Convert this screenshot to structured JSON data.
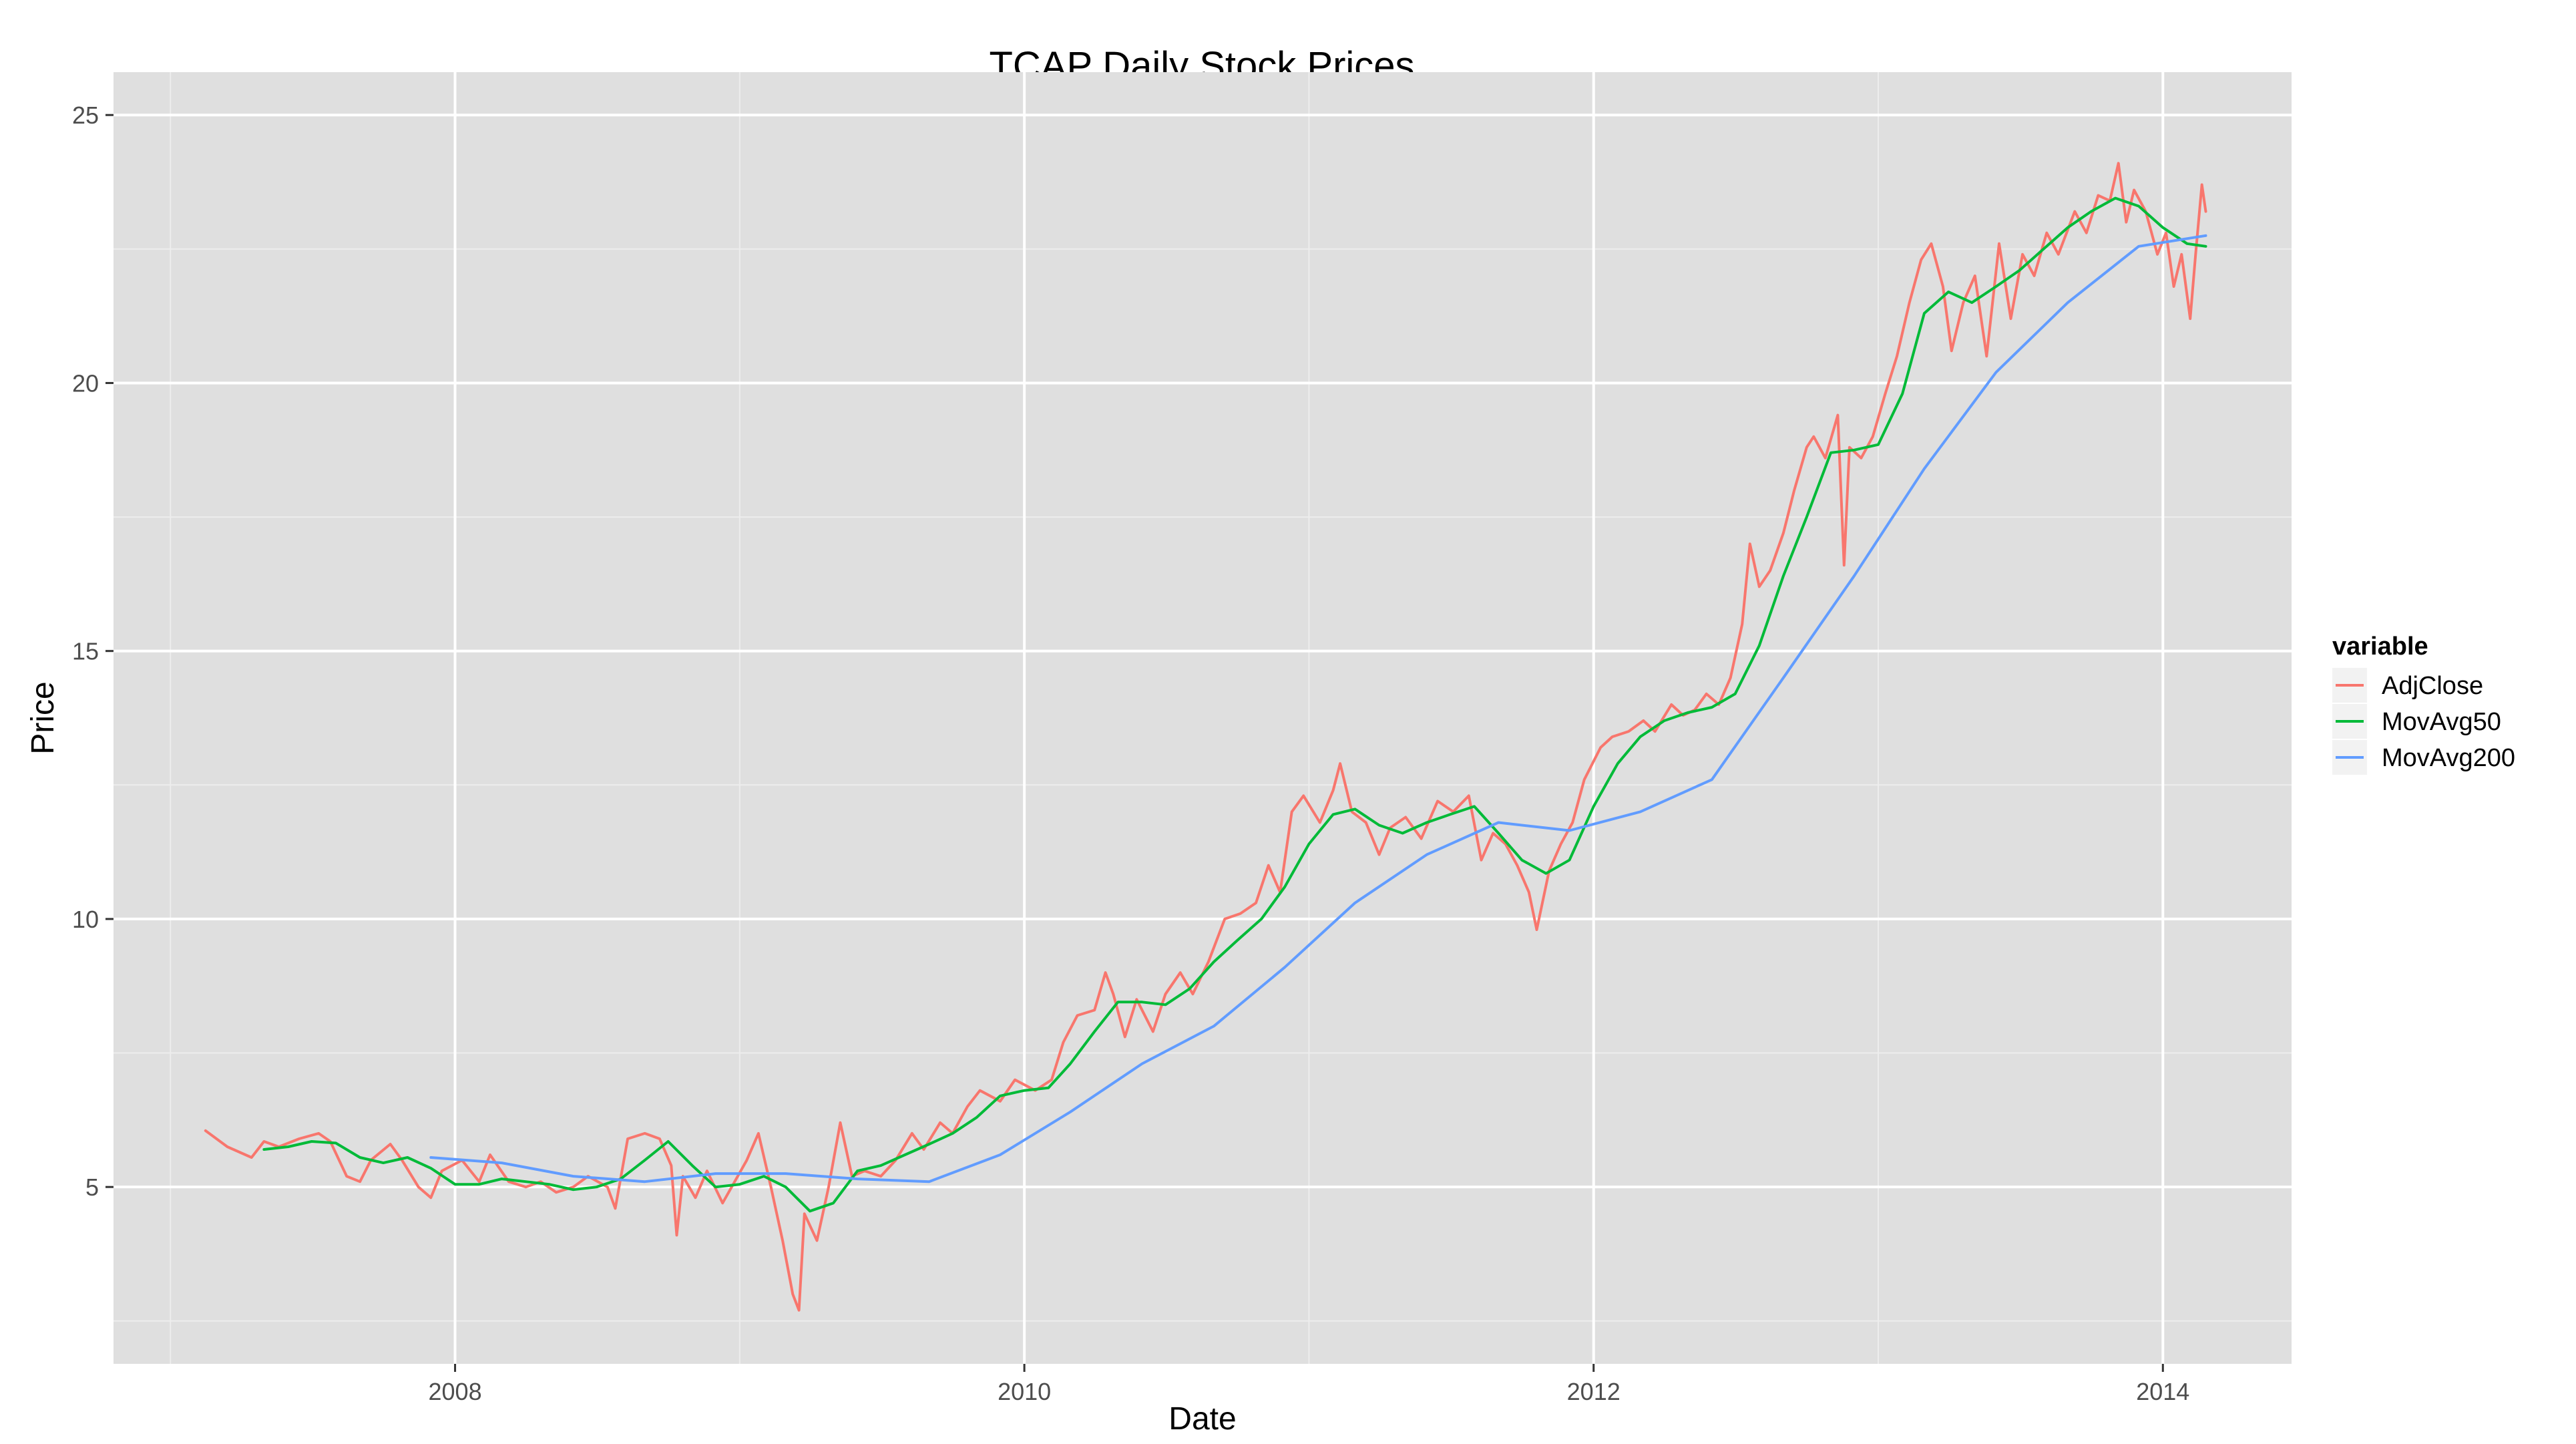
{
  "chart_data": {
    "type": "line",
    "title": "TCAP Daily Stock Prices",
    "xlabel": "Date",
    "ylabel": "Price",
    "x_ticks": [
      "2008",
      "2010",
      "2012",
      "2014"
    ],
    "y_ticks": [
      "5",
      "10",
      "15",
      "20",
      "25"
    ],
    "xlim": [
      "2006-10-20",
      "2014-06-15"
    ],
    "ylim": [
      1.7,
      25.8
    ],
    "grid": true,
    "background": "#dfdfdf",
    "legend": {
      "title": "variable",
      "placement": "right"
    },
    "series": [
      {
        "name": "AdjClose",
        "color": "#f8766d",
        "points": [
          [
            "2007-02-15",
            6.05
          ],
          [
            "2007-03-15",
            5.75
          ],
          [
            "2007-04-15",
            5.55
          ],
          [
            "2007-05-01",
            5.85
          ],
          [
            "2007-05-20",
            5.75
          ],
          [
            "2007-06-15",
            5.9
          ],
          [
            "2007-07-10",
            6.0
          ],
          [
            "2007-07-25",
            5.85
          ],
          [
            "2007-08-15",
            5.2
          ],
          [
            "2007-09-01",
            5.1
          ],
          [
            "2007-09-15",
            5.5
          ],
          [
            "2007-10-10",
            5.8
          ],
          [
            "2007-10-25",
            5.5
          ],
          [
            "2007-11-15",
            5.0
          ],
          [
            "2007-12-01",
            4.8
          ],
          [
            "2007-12-15",
            5.3
          ],
          [
            "2008-01-10",
            5.5
          ],
          [
            "2008-02-01",
            5.1
          ],
          [
            "2008-02-15",
            5.6
          ],
          [
            "2008-03-10",
            5.1
          ],
          [
            "2008-04-01",
            5.0
          ],
          [
            "2008-04-20",
            5.1
          ],
          [
            "2008-05-10",
            4.9
          ],
          [
            "2008-06-01",
            5.0
          ],
          [
            "2008-06-20",
            5.2
          ],
          [
            "2008-07-15",
            5.0
          ],
          [
            "2008-07-25",
            4.6
          ],
          [
            "2008-08-10",
            5.9
          ],
          [
            "2008-09-01",
            6.0
          ],
          [
            "2008-09-20",
            5.9
          ],
          [
            "2008-10-05",
            5.4
          ],
          [
            "2008-10-12",
            4.1
          ],
          [
            "2008-10-20",
            5.2
          ],
          [
            "2008-11-05",
            4.8
          ],
          [
            "2008-11-20",
            5.3
          ],
          [
            "2008-12-10",
            4.7
          ],
          [
            "2009-01-10",
            5.5
          ],
          [
            "2009-01-25",
            6.0
          ],
          [
            "2009-02-10",
            5.0
          ],
          [
            "2009-02-25",
            4.0
          ],
          [
            "2009-03-10",
            3.0
          ],
          [
            "2009-03-18",
            2.7
          ],
          [
            "2009-03-25",
            4.5
          ],
          [
            "2009-04-10",
            4.0
          ],
          [
            "2009-04-25",
            5.0
          ],
          [
            "2009-05-10",
            6.2
          ],
          [
            "2009-05-25",
            5.2
          ],
          [
            "2009-06-10",
            5.3
          ],
          [
            "2009-07-01",
            5.2
          ],
          [
            "2009-07-20",
            5.5
          ],
          [
            "2009-08-10",
            6.0
          ],
          [
            "2009-08-25",
            5.7
          ],
          [
            "2009-09-15",
            6.2
          ],
          [
            "2009-10-01",
            6.0
          ],
          [
            "2009-10-20",
            6.5
          ],
          [
            "2009-11-05",
            6.8
          ],
          [
            "2009-12-01",
            6.6
          ],
          [
            "2009-12-20",
            7.0
          ],
          [
            "2010-01-15",
            6.8
          ],
          [
            "2010-02-05",
            7.0
          ],
          [
            "2010-02-20",
            7.7
          ],
          [
            "2010-03-10",
            8.2
          ],
          [
            "2010-04-01",
            8.3
          ],
          [
            "2010-04-15",
            9.0
          ],
          [
            "2010-04-25",
            8.6
          ],
          [
            "2010-05-10",
            7.8
          ],
          [
            "2010-05-25",
            8.5
          ],
          [
            "2010-06-15",
            7.9
          ],
          [
            "2010-07-01",
            8.6
          ],
          [
            "2010-07-20",
            9.0
          ],
          [
            "2010-08-05",
            8.6
          ],
          [
            "2010-08-25",
            9.2
          ],
          [
            "2010-09-15",
            10.0
          ],
          [
            "2010-10-05",
            10.1
          ],
          [
            "2010-10-25",
            10.3
          ],
          [
            "2010-11-10",
            11.0
          ],
          [
            "2010-11-25",
            10.5
          ],
          [
            "2010-12-10",
            12.0
          ],
          [
            "2010-12-25",
            12.3
          ],
          [
            "2011-01-15",
            11.8
          ],
          [
            "2011-02-01",
            12.4
          ],
          [
            "2011-02-10",
            12.9
          ],
          [
            "2011-02-25",
            12.0
          ],
          [
            "2011-03-15",
            11.8
          ],
          [
            "2011-04-01",
            11.2
          ],
          [
            "2011-04-15",
            11.7
          ],
          [
            "2011-05-05",
            11.9
          ],
          [
            "2011-05-25",
            11.5
          ],
          [
            "2011-06-15",
            12.2
          ],
          [
            "2011-07-05",
            12.0
          ],
          [
            "2011-07-25",
            12.3
          ],
          [
            "2011-08-10",
            11.1
          ],
          [
            "2011-08-25",
            11.6
          ],
          [
            "2011-09-10",
            11.4
          ],
          [
            "2011-09-25",
            11.0
          ],
          [
            "2011-10-10",
            10.5
          ],
          [
            "2011-10-20",
            9.8
          ],
          [
            "2011-11-05",
            10.9
          ],
          [
            "2011-11-20",
            11.4
          ],
          [
            "2011-12-05",
            11.8
          ],
          [
            "2011-12-20",
            12.6
          ],
          [
            "2012-01-10",
            13.2
          ],
          [
            "2012-01-25",
            13.4
          ],
          [
            "2012-02-15",
            13.5
          ],
          [
            "2012-03-05",
            13.7
          ],
          [
            "2012-03-20",
            13.5
          ],
          [
            "2012-04-10",
            14.0
          ],
          [
            "2012-04-25",
            13.8
          ],
          [
            "2012-05-10",
            13.9
          ],
          [
            "2012-05-25",
            14.2
          ],
          [
            "2012-06-10",
            14.0
          ],
          [
            "2012-06-25",
            14.5
          ],
          [
            "2012-07-10",
            15.5
          ],
          [
            "2012-07-20",
            17.0
          ],
          [
            "2012-08-01",
            16.2
          ],
          [
            "2012-08-15",
            16.5
          ],
          [
            "2012-09-01",
            17.2
          ],
          [
            "2012-09-15",
            18.0
          ],
          [
            "2012-10-01",
            18.8
          ],
          [
            "2012-10-10",
            19.0
          ],
          [
            "2012-10-25",
            18.6
          ],
          [
            "2012-11-10",
            19.4
          ],
          [
            "2012-11-18",
            16.6
          ],
          [
            "2012-11-25",
            18.8
          ],
          [
            "2012-12-10",
            18.6
          ],
          [
            "2012-12-25",
            19.0
          ],
          [
            "2013-01-10",
            19.8
          ],
          [
            "2013-01-25",
            20.5
          ],
          [
            "2013-02-10",
            21.5
          ],
          [
            "2013-02-25",
            22.3
          ],
          [
            "2013-03-10",
            22.6
          ],
          [
            "2013-03-25",
            21.8
          ],
          [
            "2013-04-05",
            20.6
          ],
          [
            "2013-04-20",
            21.5
          ],
          [
            "2013-05-05",
            22.0
          ],
          [
            "2013-05-20",
            20.5
          ],
          [
            "2013-06-05",
            22.6
          ],
          [
            "2013-06-20",
            21.2
          ],
          [
            "2013-07-05",
            22.4
          ],
          [
            "2013-07-20",
            22.0
          ],
          [
            "2013-08-05",
            22.8
          ],
          [
            "2013-08-20",
            22.4
          ],
          [
            "2013-09-10",
            23.2
          ],
          [
            "2013-09-25",
            22.8
          ],
          [
            "2013-10-10",
            23.5
          ],
          [
            "2013-10-25",
            23.4
          ],
          [
            "2013-11-05",
            24.1
          ],
          [
            "2013-11-15",
            23.0
          ],
          [
            "2013-11-25",
            23.6
          ],
          [
            "2013-12-10",
            23.2
          ],
          [
            "2013-12-25",
            22.4
          ],
          [
            "2014-01-05",
            22.8
          ],
          [
            "2014-01-15",
            21.8
          ],
          [
            "2014-01-25",
            22.4
          ],
          [
            "2014-02-05",
            21.2
          ],
          [
            "2014-02-12",
            22.4
          ],
          [
            "2014-02-20",
            23.7
          ],
          [
            "2014-02-25",
            23.2
          ]
        ]
      },
      {
        "name": "MovAvg50",
        "color": "#00ba38",
        "points": [
          [
            "2007-05-01",
            5.7
          ],
          [
            "2007-06-01",
            5.75
          ],
          [
            "2007-07-01",
            5.85
          ],
          [
            "2007-08-01",
            5.82
          ],
          [
            "2007-09-01",
            5.55
          ],
          [
            "2007-10-01",
            5.45
          ],
          [
            "2007-11-01",
            5.55
          ],
          [
            "2007-12-01",
            5.35
          ],
          [
            "2008-01-01",
            5.05
          ],
          [
            "2008-02-01",
            5.05
          ],
          [
            "2008-03-01",
            5.15
          ],
          [
            "2008-04-01",
            5.1
          ],
          [
            "2008-05-01",
            5.05
          ],
          [
            "2008-06-01",
            4.95
          ],
          [
            "2008-07-01",
            5.0
          ],
          [
            "2008-08-01",
            5.15
          ],
          [
            "2008-09-01",
            5.5
          ],
          [
            "2008-10-01",
            5.85
          ],
          [
            "2008-11-01",
            5.4
          ],
          [
            "2008-12-01",
            5.0
          ],
          [
            "2009-01-01",
            5.05
          ],
          [
            "2009-02-01",
            5.2
          ],
          [
            "2009-03-01",
            5.0
          ],
          [
            "2009-04-01",
            4.55
          ],
          [
            "2009-05-01",
            4.7
          ],
          [
            "2009-06-01",
            5.3
          ],
          [
            "2009-07-01",
            5.4
          ],
          [
            "2009-08-01",
            5.6
          ],
          [
            "2009-09-01",
            5.8
          ],
          [
            "2009-10-01",
            6.0
          ],
          [
            "2009-11-01",
            6.3
          ],
          [
            "2009-12-01",
            6.7
          ],
          [
            "2010-01-01",
            6.8
          ],
          [
            "2010-02-01",
            6.85
          ],
          [
            "2010-03-01",
            7.3
          ],
          [
            "2010-04-01",
            7.9
          ],
          [
            "2010-05-01",
            8.45
          ],
          [
            "2010-06-01",
            8.45
          ],
          [
            "2010-07-01",
            8.4
          ],
          [
            "2010-08-01",
            8.7
          ],
          [
            "2010-09-01",
            9.2
          ],
          [
            "2010-10-01",
            9.6
          ],
          [
            "2010-11-01",
            10.0
          ],
          [
            "2010-12-01",
            10.6
          ],
          [
            "2011-01-01",
            11.4
          ],
          [
            "2011-02-01",
            11.95
          ],
          [
            "2011-03-01",
            12.05
          ],
          [
            "2011-04-01",
            11.75
          ],
          [
            "2011-05-01",
            11.6
          ],
          [
            "2011-06-01",
            11.8
          ],
          [
            "2011-07-01",
            11.95
          ],
          [
            "2011-08-01",
            12.1
          ],
          [
            "2011-09-01",
            11.6
          ],
          [
            "2011-10-01",
            11.1
          ],
          [
            "2011-11-01",
            10.85
          ],
          [
            "2011-12-01",
            11.1
          ],
          [
            "2012-01-01",
            12.1
          ],
          [
            "2012-02-01",
            12.9
          ],
          [
            "2012-03-01",
            13.4
          ],
          [
            "2012-04-01",
            13.7
          ],
          [
            "2012-05-01",
            13.85
          ],
          [
            "2012-06-01",
            13.95
          ],
          [
            "2012-07-01",
            14.2
          ],
          [
            "2012-08-01",
            15.1
          ],
          [
            "2012-09-01",
            16.4
          ],
          [
            "2012-10-01",
            17.5
          ],
          [
            "2012-11-01",
            18.7
          ],
          [
            "2012-12-01",
            18.75
          ],
          [
            "2013-01-01",
            18.85
          ],
          [
            "2013-02-01",
            19.8
          ],
          [
            "2013-03-01",
            21.3
          ],
          [
            "2013-04-01",
            21.7
          ],
          [
            "2013-05-01",
            21.5
          ],
          [
            "2013-06-01",
            21.8
          ],
          [
            "2013-07-01",
            22.1
          ],
          [
            "2013-08-01",
            22.5
          ],
          [
            "2013-09-01",
            22.9
          ],
          [
            "2013-10-01",
            23.2
          ],
          [
            "2013-11-01",
            23.45
          ],
          [
            "2013-12-01",
            23.3
          ],
          [
            "2014-01-01",
            22.9
          ],
          [
            "2014-02-01",
            22.6
          ],
          [
            "2014-02-25",
            22.55
          ]
        ]
      },
      {
        "name": "MovAvg200",
        "color": "#619cff",
        "points": [
          [
            "2007-12-01",
            5.55
          ],
          [
            "2008-03-01",
            5.45
          ],
          [
            "2008-06-01",
            5.2
          ],
          [
            "2008-09-01",
            5.1
          ],
          [
            "2008-12-01",
            5.25
          ],
          [
            "2009-03-01",
            5.25
          ],
          [
            "2009-06-01",
            5.15
          ],
          [
            "2009-09-01",
            5.1
          ],
          [
            "2009-12-01",
            5.6
          ],
          [
            "2010-03-01",
            6.4
          ],
          [
            "2010-06-01",
            7.3
          ],
          [
            "2010-09-01",
            8.0
          ],
          [
            "2010-12-01",
            9.1
          ],
          [
            "2011-03-01",
            10.3
          ],
          [
            "2011-06-01",
            11.2
          ],
          [
            "2011-09-01",
            11.8
          ],
          [
            "2011-12-01",
            11.65
          ],
          [
            "2012-03-01",
            12.0
          ],
          [
            "2012-06-01",
            12.6
          ],
          [
            "2012-09-01",
            14.5
          ],
          [
            "2012-12-01",
            16.4
          ],
          [
            "2013-03-01",
            18.4
          ],
          [
            "2013-06-01",
            20.2
          ],
          [
            "2013-09-01",
            21.5
          ],
          [
            "2013-12-01",
            22.55
          ],
          [
            "2014-02-25",
            22.75
          ]
        ]
      }
    ]
  }
}
